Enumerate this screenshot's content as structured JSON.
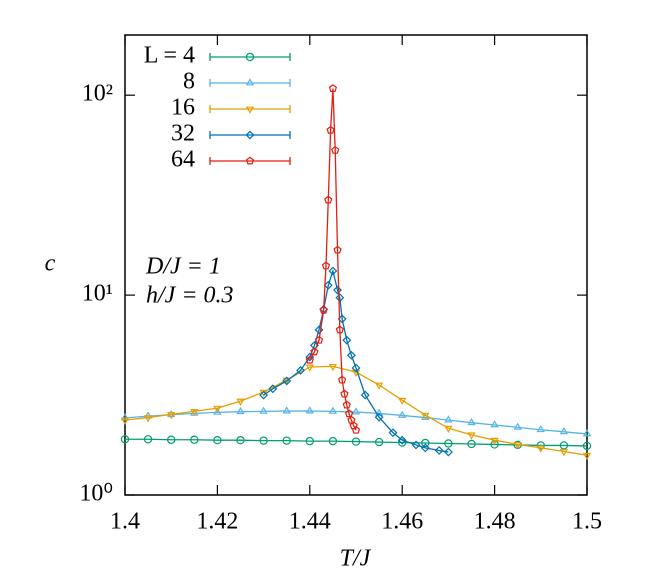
{
  "chart_data": {
    "type": "line",
    "xlabel": "T/J",
    "ylabel": "c",
    "annotations": [
      "D/J = 1",
      "h/J = 0.3"
    ],
    "log_y": true,
    "xlim": [
      1.4,
      1.5
    ],
    "xticks": [
      1.4,
      1.42,
      1.44,
      1.46,
      1.48,
      1.5
    ],
    "ylim": [
      1,
      200
    ],
    "yticks": [
      {
        "value": 1,
        "label": "10⁰"
      },
      {
        "value": 10,
        "label": "10¹"
      },
      {
        "value": 100,
        "label": "10²"
      }
    ],
    "legend": "upper left",
    "series": [
      {
        "name": "L = 4",
        "color": "#009e73",
        "marker": "circle",
        "x": [
          1.4,
          1.405,
          1.41,
          1.415,
          1.42,
          1.425,
          1.43,
          1.435,
          1.44,
          1.445,
          1.45,
          1.455,
          1.46,
          1.465,
          1.47,
          1.475,
          1.48,
          1.485,
          1.49,
          1.495,
          1.5
        ],
        "values": [
          1.9,
          1.9,
          1.89,
          1.89,
          1.88,
          1.88,
          1.87,
          1.87,
          1.86,
          1.86,
          1.85,
          1.84,
          1.83,
          1.82,
          1.81,
          1.8,
          1.79,
          1.78,
          1.77,
          1.77,
          1.76
        ]
      },
      {
        "name": "8",
        "color": "#56b4e9",
        "marker": "triangle-up",
        "x": [
          1.4,
          1.405,
          1.41,
          1.415,
          1.42,
          1.425,
          1.43,
          1.435,
          1.44,
          1.445,
          1.45,
          1.455,
          1.46,
          1.465,
          1.47,
          1.475,
          1.48,
          1.485,
          1.49,
          1.495,
          1.5
        ],
        "values": [
          2.43,
          2.48,
          2.52,
          2.56,
          2.59,
          2.61,
          2.62,
          2.63,
          2.63,
          2.62,
          2.6,
          2.56,
          2.5,
          2.44,
          2.37,
          2.3,
          2.24,
          2.18,
          2.12,
          2.07,
          2.02
        ]
      },
      {
        "name": "16",
        "color": "#e69f00",
        "marker": "triangle-down",
        "x": [
          1.4,
          1.405,
          1.41,
          1.415,
          1.42,
          1.425,
          1.43,
          1.435,
          1.44,
          1.445,
          1.45,
          1.455,
          1.46,
          1.465,
          1.47,
          1.475,
          1.48,
          1.485,
          1.49,
          1.495,
          1.5
        ],
        "values": [
          2.37,
          2.44,
          2.53,
          2.62,
          2.72,
          2.95,
          3.27,
          3.76,
          4.37,
          4.4,
          4.12,
          3.55,
          2.98,
          2.51,
          2.16,
          2.0,
          1.88,
          1.79,
          1.72,
          1.65,
          1.58
        ]
      },
      {
        "name": "32",
        "color": "#0072b2",
        "marker": "diamond",
        "x": [
          1.43,
          1.432,
          1.435,
          1.438,
          1.44,
          1.441,
          1.442,
          1.443,
          1.444,
          1.445,
          1.446,
          1.4465,
          1.447,
          1.448,
          1.449,
          1.45,
          1.452,
          1.455,
          1.458,
          1.46,
          1.463,
          1.465,
          1.468,
          1.47
        ],
        "values": [
          3.16,
          3.4,
          3.72,
          4.2,
          4.9,
          5.6,
          6.7,
          8.5,
          11.2,
          13.2,
          10.6,
          9.7,
          7.6,
          5.95,
          5.0,
          4.32,
          3.16,
          2.45,
          2.05,
          1.88,
          1.78,
          1.72,
          1.67,
          1.64
        ]
      },
      {
        "name": "64",
        "color": "#e51e10",
        "marker": "pentagon",
        "x": [
          1.44,
          1.441,
          1.442,
          1.443,
          1.4435,
          1.444,
          1.4445,
          1.445,
          1.4455,
          1.446,
          1.4465,
          1.447,
          1.4475,
          1.448,
          1.4485,
          1.449,
          1.4495,
          1.45
        ],
        "values": [
          4.73,
          5.2,
          5.95,
          8.4,
          14.0,
          29.9,
          66.8,
          108,
          53,
          16.8,
          6.7,
          3.76,
          3.2,
          2.82,
          2.55,
          2.37,
          2.22,
          2.11
        ]
      }
    ]
  }
}
